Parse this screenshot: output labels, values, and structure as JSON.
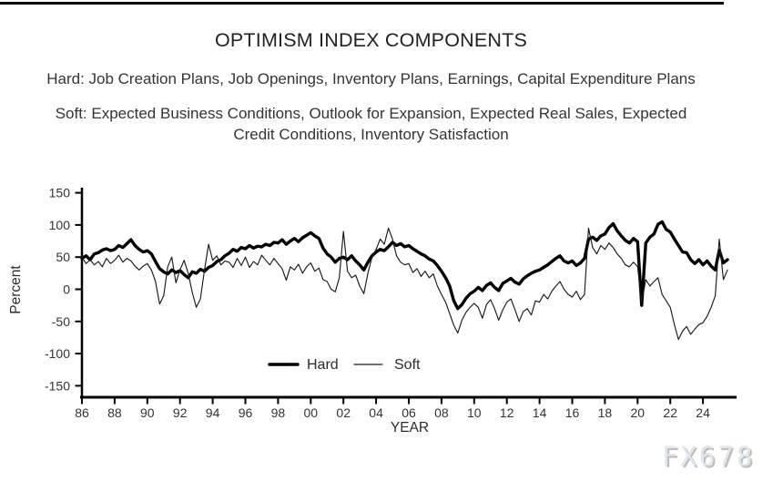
{
  "header": {
    "title": "OPTIMISM INDEX COMPONENTS",
    "hard_line": "Hard: Job Creation Plans, Job Openings, Inventory Plans, Earnings, Capital Expenditure Plans",
    "soft_line_1": "Soft: Expected Business Conditions, Outlook for Expansion, Expected Real Sales, Expected",
    "soft_line_2": "Credit Conditions, Inventory Satisfaction"
  },
  "watermark": "FX678",
  "colors": {
    "hard_line": "#000000",
    "soft_line": "#1a1a1a",
    "text": "#333333",
    "watermark_text": "#dbe7f5",
    "watermark_shadow": "#a89a7e"
  },
  "chart_data": {
    "type": "line",
    "title": "OPTIMISM INDEX COMPONENTS",
    "xlabel": "YEAR",
    "ylabel": "Percent",
    "ylim": [
      -150,
      150
    ],
    "xlim": [
      1985.9,
      2026.2
    ],
    "grid": false,
    "legend_position": "inside-bottom-center",
    "x_start": 1986.0,
    "x_step": 0.25,
    "y_ticks": [
      150,
      100,
      50,
      0,
      -50,
      -100,
      -150
    ],
    "x_tick_years": [
      1986,
      1988,
      1990,
      1992,
      1994,
      1996,
      1998,
      2000,
      2002,
      2004,
      2006,
      2008,
      2010,
      2012,
      2014,
      2016,
      2018,
      2020,
      2022,
      2024
    ],
    "x_tick_labels": [
      "86",
      "88",
      "90",
      "92",
      "94",
      "96",
      "98",
      "00",
      "02",
      "04",
      "06",
      "08",
      "10",
      "12",
      "14",
      "16",
      "18",
      "20",
      "22",
      "24"
    ],
    "series": [
      {
        "name": "Hard",
        "style": "thick",
        "values": [
          48,
          52,
          46,
          55,
          57,
          61,
          63,
          60,
          62,
          68,
          65,
          71,
          77,
          68,
          62,
          58,
          60,
          55,
          43,
          32,
          27,
          24,
          30,
          26,
          29,
          23,
          18,
          27,
          25,
          31,
          28,
          34,
          37,
          43,
          46,
          52,
          56,
          62,
          59,
          65,
          63,
          68,
          64,
          67,
          66,
          70,
          68,
          73,
          72,
          77,
          70,
          75,
          79,
          74,
          80,
          84,
          88,
          83,
          79,
          64,
          55,
          50,
          42,
          48,
          50,
          46,
          52,
          44,
          38,
          30,
          42,
          52,
          58,
          62,
          60,
          66,
          73,
          68,
          71,
          66,
          68,
          63,
          59,
          55,
          52,
          47,
          44,
          37,
          28,
          18,
          5,
          -18,
          -30,
          -24,
          -14,
          -7,
          -3,
          3,
          -2,
          6,
          10,
          3,
          -2,
          9,
          13,
          17,
          11,
          8,
          16,
          21,
          25,
          28,
          30,
          34,
          38,
          43,
          48,
          52,
          44,
          41,
          44,
          37,
          41,
          48,
          78,
          81,
          76,
          83,
          86,
          96,
          102,
          91,
          83,
          76,
          72,
          79,
          74,
          -25,
          72,
          81,
          86,
          101,
          105,
          93,
          89,
          78,
          68,
          58,
          57,
          46,
          40,
          46,
          38,
          44,
          36,
          30,
          61,
          41,
          46
        ]
      },
      {
        "name": "Soft",
        "style": "thin",
        "values": [
          50,
          40,
          46,
          38,
          43,
          35,
          48,
          40,
          45,
          53,
          42,
          48,
          44,
          36,
          30,
          36,
          40,
          30,
          12,
          -23,
          -10,
          35,
          50,
          10,
          30,
          45,
          25,
          -5,
          -28,
          -15,
          30,
          70,
          45,
          52,
          38,
          44,
          42,
          34,
          48,
          37,
          50,
          34,
          43,
          38,
          53,
          45,
          38,
          48,
          40,
          32,
          14,
          35,
          30,
          39,
          25,
          35,
          41,
          28,
          33,
          15,
          12,
          0,
          -4,
          18,
          90,
          28,
          18,
          22,
          5,
          -7,
          25,
          50,
          62,
          78,
          70,
          95,
          78,
          52,
          42,
          38,
          40,
          26,
          32,
          20,
          28,
          18,
          24,
          5,
          -8,
          -20,
          -38,
          -56,
          -68,
          -48,
          -36,
          -28,
          -22,
          -28,
          -45,
          -24,
          -16,
          -30,
          -48,
          -32,
          -20,
          -15,
          -32,
          -50,
          -35,
          -30,
          -40,
          -18,
          -20,
          -8,
          -15,
          -3,
          5,
          12,
          0,
          -8,
          -12,
          -3,
          -16,
          -8,
          95,
          65,
          55,
          68,
          62,
          72,
          65,
          55,
          48,
          38,
          35,
          42,
          35,
          -20,
          15,
          5,
          12,
          18,
          -8,
          -18,
          -28,
          -55,
          -78,
          -65,
          -58,
          -70,
          -62,
          -55,
          -52,
          -42,
          -28,
          -10,
          78,
          15,
          30
        ]
      }
    ]
  }
}
